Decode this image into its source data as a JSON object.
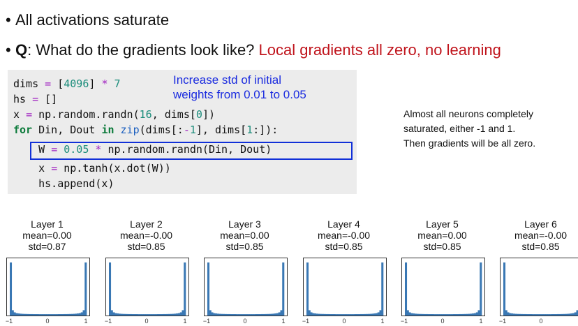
{
  "bullets": [
    {
      "text": "All activations saturate",
      "answer": ""
    },
    {
      "prefix": "Q",
      "text": ": What do the gradients look like? ",
      "answer": "Local gradients all zero, no learning"
    }
  ],
  "code": {
    "annotation_line1": "Increase std of initial",
    "annotation_line2": "weights from 0.01 to 0.05"
  },
  "side_note": {
    "line1": "Almost all neurons completely",
    "line2": "saturated, either -1 and 1.",
    "line3": "Then gradients will be all zero."
  },
  "layers": [
    {
      "title": "Layer 1",
      "mean": "mean=0.00",
      "std": "std=0.87"
    },
    {
      "title": "Layer 2",
      "mean": "mean=-0.00",
      "std": "std=0.85"
    },
    {
      "title": "Layer 3",
      "mean": "mean=0.00",
      "std": "std=0.85"
    },
    {
      "title": "Layer 4",
      "mean": "mean=-0.00",
      "std": "std=0.85"
    },
    {
      "title": "Layer 5",
      "mean": "mean=0.00",
      "std": "std=0.85"
    },
    {
      "title": "Layer 6",
      "mean": "mean=-0.00",
      "std": "std=0.85"
    }
  ],
  "tick_labels": [
    "−1",
    "0",
    "1"
  ],
  "colors": {
    "histogram": "#3a78b4",
    "answer": "#c0141c",
    "annotation": "#1a2bdf",
    "highlight_box": "#1130d8"
  },
  "chart_data": {
    "type": "bar",
    "xlim": [
      -1,
      1
    ],
    "description_series": "activation histograms, saturated at -1 and 1",
    "bins": [
      -0.975,
      -0.925,
      -0.875,
      -0.825,
      -0.775,
      -0.725,
      -0.675,
      -0.625,
      -0.575,
      -0.525,
      -0.475,
      -0.425,
      -0.375,
      -0.325,
      -0.275,
      -0.225,
      -0.175,
      -0.125,
      -0.075,
      -0.025,
      0.025,
      0.075,
      0.125,
      0.175,
      0.225,
      0.275,
      0.325,
      0.375,
      0.425,
      0.475,
      0.525,
      0.575,
      0.625,
      0.675,
      0.725,
      0.775,
      0.825,
      0.875,
      0.925,
      0.975
    ],
    "relative_counts": [
      1.0,
      0.1,
      0.06,
      0.045,
      0.04,
      0.035,
      0.032,
      0.03,
      0.029,
      0.028,
      0.027,
      0.027,
      0.026,
      0.026,
      0.026,
      0.025,
      0.025,
      0.025,
      0.025,
      0.025,
      0.025,
      0.025,
      0.025,
      0.025,
      0.025,
      0.026,
      0.026,
      0.026,
      0.027,
      0.027,
      0.028,
      0.029,
      0.03,
      0.032,
      0.035,
      0.04,
      0.045,
      0.06,
      0.1,
      1.0
    ]
  }
}
